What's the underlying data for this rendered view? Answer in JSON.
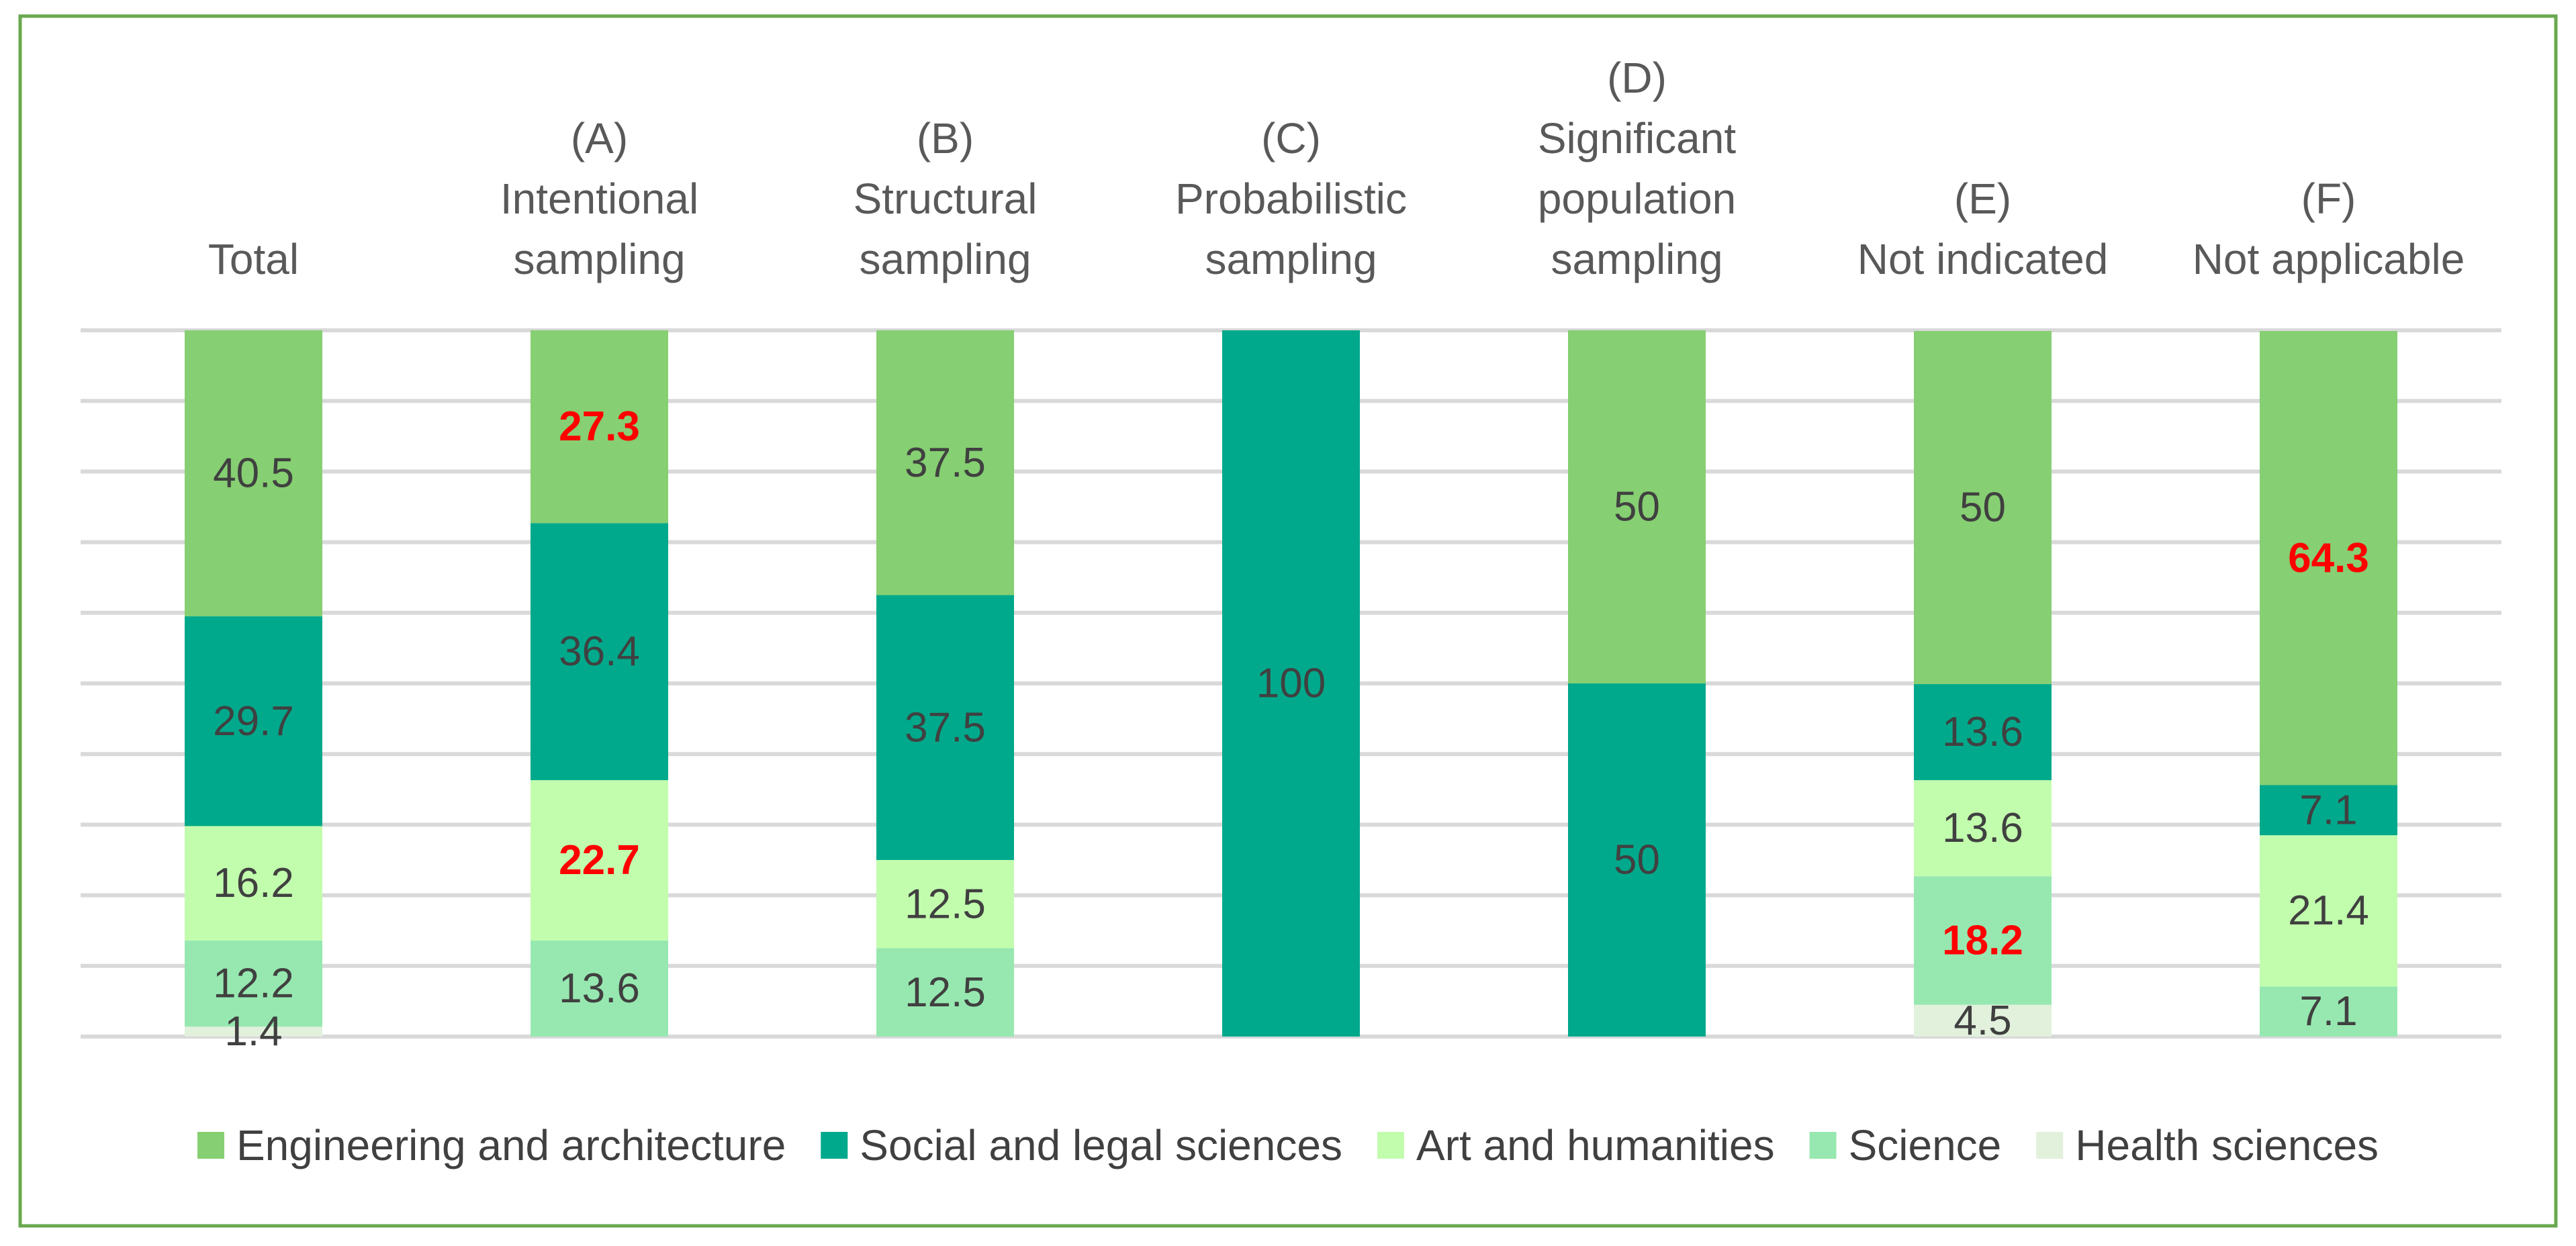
{
  "chart_data": {
    "type": "bar",
    "stacked": true,
    "percent_stacked": true,
    "title": "",
    "xlabel": "",
    "ylabel": "",
    "ylim": [
      0,
      100
    ],
    "grid": true,
    "legend_position": "bottom",
    "categories": [
      [
        "Total"
      ],
      [
        "(A)",
        "Intentional",
        "sampling"
      ],
      [
        "(B)",
        "Structural",
        "sampling"
      ],
      [
        "(C)",
        "Probabilistic",
        "sampling"
      ],
      [
        "(D)",
        "Significant",
        "population",
        "sampling"
      ],
      [
        "(E)",
        "Not indicated"
      ],
      [
        "(F)",
        "Not applicable"
      ]
    ],
    "series": [
      {
        "name": "Engineering and architecture",
        "color": "#86cf72",
        "values": [
          40.5,
          27.3,
          37.5,
          0,
          50,
          50,
          64.3
        ],
        "labels": [
          "40.5",
          "27.3",
          "37.5",
          "",
          "50",
          "50",
          "64.3"
        ]
      },
      {
        "name": "Social and legal sciences",
        "color": "#00a98b",
        "values": [
          29.7,
          36.4,
          37.5,
          100,
          50,
          13.6,
          7.1
        ],
        "labels": [
          "29.7",
          "36.4",
          "37.5",
          "100",
          "50",
          "13.6",
          "7.1"
        ]
      },
      {
        "name": "Art and humanities",
        "color": "#c2fdae",
        "values": [
          16.2,
          22.7,
          12.5,
          0,
          0,
          13.6,
          21.4
        ],
        "labels": [
          "16.2",
          "22.7",
          "12.5",
          "",
          "",
          "13.6",
          "21.4"
        ]
      },
      {
        "name": "Science",
        "color": "#97e8b0",
        "values": [
          12.2,
          13.6,
          12.5,
          0,
          0,
          18.2,
          7.1
        ],
        "labels": [
          "12.2",
          "13.6",
          "12.5",
          "",
          "",
          "18.2",
          "7.1"
        ]
      },
      {
        "name": "Health sciences",
        "color": "#e2f1dc",
        "values": [
          1.4,
          0,
          0,
          0,
          0,
          4.5,
          0
        ],
        "labels": [
          "1.4",
          "",
          "",
          "",
          "",
          "4.5",
          ""
        ]
      }
    ],
    "highlighted_labels": [
      {
        "series": "Engineering and architecture",
        "category_index": 1,
        "value": "27.3"
      },
      {
        "series": "Art and humanities",
        "category_index": 1,
        "value": "22.7"
      },
      {
        "series": "Science",
        "category_index": 5,
        "value": "18.2"
      },
      {
        "series": "Engineering and architecture",
        "category_index": 6,
        "value": "64.3"
      }
    ],
    "highlight_color": "#ff0000",
    "label_color": "#404040"
  }
}
